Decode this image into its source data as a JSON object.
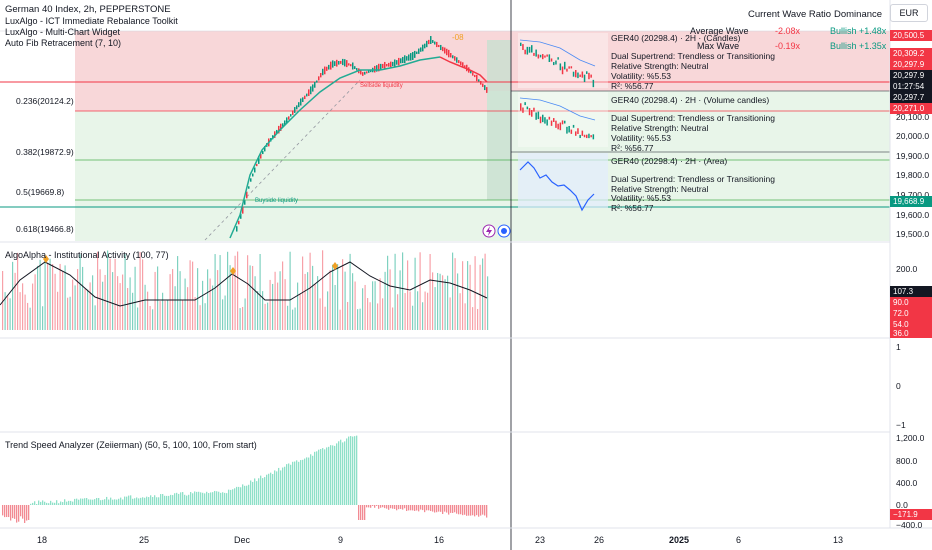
{
  "header": {
    "title": "German 40 Index, 2h, PEPPERSTONE",
    "indicators": [
      "LuxAlgo - ICT Immediate Rebalance Toolkit",
      "LuxAlgo - Multi-Chart Widget",
      "Auto Fib Retracement (7, 10)"
    ],
    "currency": "EUR",
    "wave_table": {
      "col1": "Current Wave Ratio",
      "col2": "Dominance",
      "rows": [
        {
          "name": "Average Wave",
          "ratio": "-2.08x",
          "dominance": "Bullish +1.48x"
        },
        {
          "name": "Max Wave",
          "ratio": "-0.19x",
          "dominance": "Bullish +1.35x"
        }
      ]
    }
  },
  "fib_levels": [
    {
      "label": "0.236(20124.2)",
      "color": "#e53935"
    },
    {
      "label": "0.382(19872.9)",
      "color": "#4caf50"
    },
    {
      "label": "0.5(19669.8)",
      "color": "#4caf50"
    },
    {
      "label": "0.618(19466.8)",
      "color": "#26a69a"
    }
  ],
  "price_axis": {
    "ticks": [
      "20,100.0",
      "20,000.0",
      "19,900.0",
      "19,800.0",
      "19,700.0",
      "19,600.0",
      "19,500.0"
    ],
    "tags": [
      {
        "text": "20,500.5",
        "color": "#f23645"
      },
      {
        "text": "20,309.2",
        "color": "#f23645"
      },
      {
        "text": "20,297.9",
        "color": "#f23645"
      },
      {
        "text": "20,297.9",
        "color": "#131722"
      },
      {
        "text": "01:27:54",
        "color": "#131722"
      },
      {
        "text": "20,297.7",
        "color": "#131722"
      },
      {
        "text": "20,271.0",
        "color": "#f23645"
      },
      {
        "text": "19,668.9",
        "color": "#089981"
      }
    ]
  },
  "widget": {
    "panels": [
      {
        "title": "GER40 (20298.4) · 2H · (Candles)"
      },
      {
        "title": "GER40 (20298.4) · 2H · (Volume candles)"
      },
      {
        "title": "GER40 (20298.4) · 2H · (Area)"
      }
    ],
    "supertrend": "Dual Supertrend: Trendless or Transitioning",
    "strength": "Relative Strength: Neutral",
    "volatility": "Volatility: %5.53",
    "r2": "R²: %56.77"
  },
  "annotations": {
    "top_tag": "-08",
    "buyside": "Buyside liquidity",
    "sellside": "Sellside liquidity"
  },
  "pane2": {
    "title": "AlgoAlpha - Institutional Activity (100, 77)",
    "ticks": [
      "200.0",
      "90.0",
      "72.0",
      "54.0",
      "36.0"
    ],
    "tag": "107.3"
  },
  "pane3": {
    "ticks": [
      "1",
      "0",
      "−1"
    ]
  },
  "pane4": {
    "title": "Trend Speed Analyzer (Zeiierman) (50, 5, 100, 100, From start)",
    "ticks": [
      "1,200.0",
      "800.0",
      "400.0",
      "0.0",
      "−400.0"
    ],
    "tag": "−171.9"
  },
  "time_axis": [
    "18",
    "25",
    "Dec",
    "9",
    "16",
    "23",
    "26",
    "2025",
    "6",
    "13"
  ],
  "colors": {
    "bull": "#089981",
    "bear": "#f23645",
    "accent": "#2962ff"
  }
}
